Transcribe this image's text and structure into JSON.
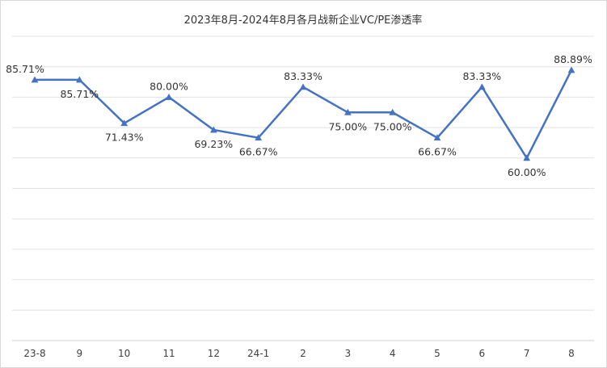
{
  "chart_data": {
    "type": "line",
    "title": "2023年8月-2024年8月各月战新企业VC/PE渗透率",
    "xlabel": "",
    "ylabel": "",
    "categories": [
      "23-8",
      "9",
      "10",
      "11",
      "12",
      "24-1",
      "2",
      "3",
      "4",
      "5",
      "6",
      "7",
      "8"
    ],
    "series": [
      {
        "values": [
          85.71,
          85.71,
          71.43,
          80.0,
          69.23,
          66.67,
          83.33,
          75.0,
          75.0,
          66.67,
          83.33,
          60.0,
          88.89
        ],
        "labels": [
          "85.71%",
          "85.71%",
          "71.43%",
          "80.00%",
          "69.23%",
          "66.67%",
          "83.33%",
          "75.00%",
          "75.00%",
          "66.67%",
          "83.33%",
          "60.00%",
          "88.89%"
        ]
      }
    ],
    "ylim": [
      0,
      100
    ],
    "grid": true,
    "y_axis_labels": false,
    "legend": "none",
    "line_color": "#4472c4"
  }
}
